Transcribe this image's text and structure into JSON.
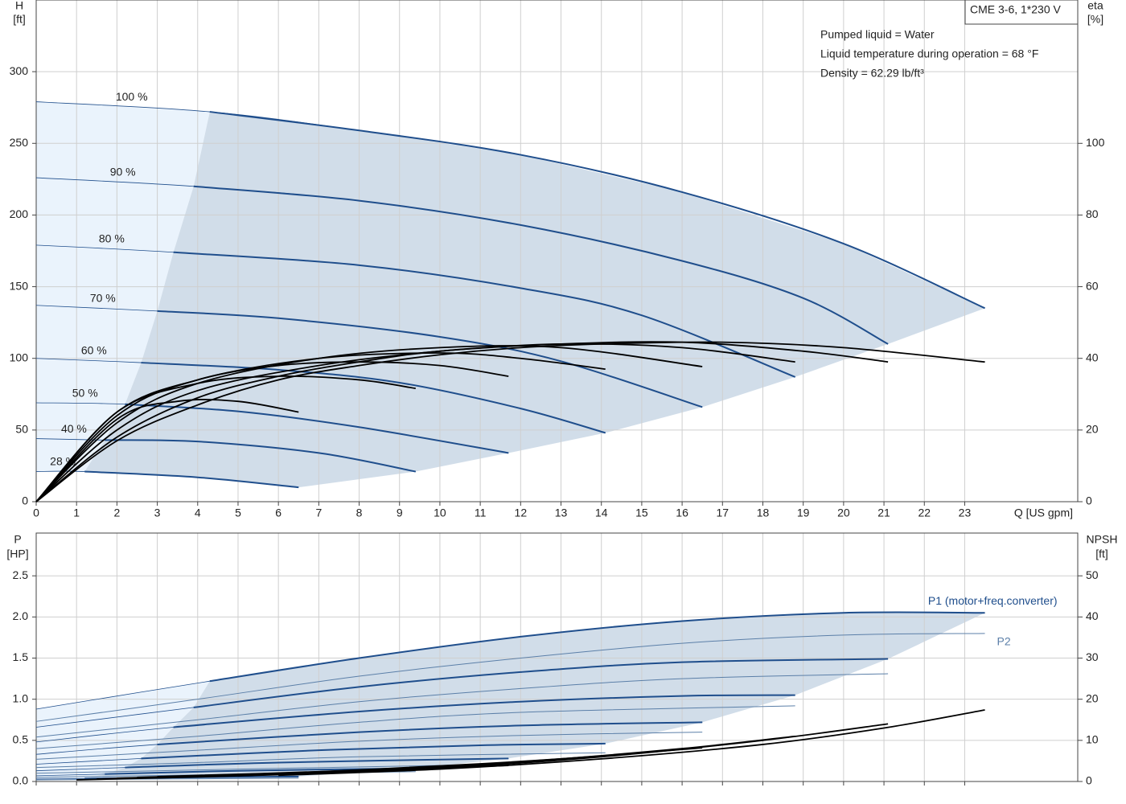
{
  "chart_data": [
    {
      "type": "line",
      "title": "CME 3-6, 1*230 V",
      "annotations": [
        "Pumped liquid = Water",
        "Liquid temperature during operation = 68 °F",
        "Density = 62.29 lb/ft³"
      ],
      "x_label": "Q [US gpm]",
      "y_label": "H",
      "y_unit": "[ft]",
      "y2_label": "eta",
      "y2_unit": "[%]",
      "xlim": [
        0,
        25.8
      ],
      "xticks": [
        0,
        1,
        2,
        3,
        4,
        5,
        6,
        7,
        8,
        9,
        10,
        11,
        12,
        13,
        14,
        15,
        16,
        17,
        18,
        19,
        20,
        21,
        22,
        23
      ],
      "ylim": [
        0,
        350
      ],
      "yticks": [
        0,
        50,
        100,
        150,
        200,
        250,
        300
      ],
      "y2lim": [
        0,
        140
      ],
      "y2ticks": [
        0,
        20,
        40,
        60,
        80,
        100
      ],
      "grid": true,
      "series": [
        {
          "name": "100 %",
          "color": "#1f4e8c",
          "line_style": "thick",
          "x": [
            0,
            4.3,
            8,
            12,
            16,
            20,
            23.5
          ],
          "values": [
            279,
            272,
            259,
            242,
            216,
            180,
            135
          ]
        },
        {
          "name": "90 %",
          "color": "#1f4e8c",
          "line_style": "thick",
          "x": [
            0,
            3.9,
            8,
            12,
            16,
            19,
            21.1
          ],
          "values": [
            226,
            220,
            210,
            193,
            168,
            142,
            110
          ]
        },
        {
          "name": "80 %",
          "color": "#1f4e8c",
          "line_style": "thick",
          "x": [
            0,
            3.4,
            8,
            12,
            15,
            18.8
          ],
          "values": [
            179,
            174,
            165,
            149,
            130,
            87
          ]
        },
        {
          "name": "70 %",
          "color": "#1f4e8c",
          "line_style": "thick",
          "x": [
            0,
            3,
            6,
            10,
            13,
            16.5
          ],
          "values": [
            137,
            133,
            128,
            115,
            98,
            66
          ]
        },
        {
          "name": "60 %",
          "color": "#1f4e8c",
          "line_style": "thick",
          "x": [
            0,
            2.6,
            6,
            9,
            12,
            14.1
          ],
          "values": [
            100,
            97,
            92,
            83,
            65,
            48
          ]
        },
        {
          "name": "50 %",
          "color": "#1f4e8c",
          "line_style": "thick",
          "x": [
            0,
            2.2,
            5,
            8,
            11.7
          ],
          "values": [
            69,
            68,
            63,
            52,
            34
          ]
        },
        {
          "name": "40 %",
          "color": "#1f4e8c",
          "line_style": "thick",
          "x": [
            0,
            1.7,
            4,
            7,
            9.4
          ],
          "values": [
            44,
            43,
            42,
            34,
            21
          ]
        },
        {
          "name": "28 %",
          "color": "#1f4e8c",
          "line_style": "thick",
          "x": [
            0,
            1.2,
            4,
            6.5
          ],
          "values": [
            21,
            21,
            17,
            10
          ]
        },
        {
          "axis": "y2",
          "color": "#000000",
          "line_style": "thick",
          "x": [
            0,
            2,
            4,
            6,
            8,
            10,
            12,
            14,
            17,
            20,
            23.5
          ],
          "values": [
            0,
            17,
            27,
            34,
            38,
            41,
            43,
            44,
            44.5,
            43,
            39
          ]
        },
        {
          "axis": "y2",
          "color": "#000000",
          "line_style": "thick",
          "x": [
            0,
            2,
            4,
            6,
            8,
            10,
            13,
            16,
            19,
            21.1
          ],
          "values": [
            0,
            18,
            29,
            35,
            39,
            42,
            44,
            44.5,
            42,
            39
          ]
        },
        {
          "axis": "y2",
          "color": "#000000",
          "line_style": "thick",
          "x": [
            0,
            2,
            4,
            7,
            10,
            13,
            16,
            18.8
          ],
          "values": [
            0,
            20,
            31,
            38,
            42,
            44,
            43,
            39
          ]
        },
        {
          "axis": "y2",
          "color": "#000000",
          "line_style": "thick",
          "x": [
            0,
            2,
            4,
            7,
            10,
            13,
            16.5
          ],
          "values": [
            0,
            22,
            33,
            40,
            43,
            43,
            37.7
          ]
        },
        {
          "axis": "y2",
          "color": "#000000",
          "line_style": "thick",
          "x": [
            0,
            2,
            4,
            7,
            10,
            12,
            14.1
          ],
          "values": [
            0,
            24,
            34,
            40,
            41.5,
            40,
            37
          ]
        },
        {
          "axis": "y2",
          "color": "#000000",
          "line_style": "thick",
          "x": [
            0,
            2,
            4,
            6,
            8,
            10,
            11.7
          ],
          "values": [
            0,
            25,
            34,
            38,
            39,
            38,
            35
          ]
        },
        {
          "axis": "y2",
          "color": "#000000",
          "line_style": "thick",
          "x": [
            0,
            2,
            4,
            6,
            8,
            9.4
          ],
          "values": [
            0,
            25,
            33,
            35,
            34,
            31.6
          ]
        },
        {
          "axis": "y2",
          "color": "#000000",
          "line_style": "thick",
          "x": [
            0,
            2,
            3.5,
            5,
            6.5
          ],
          "values": [
            0,
            23,
            28,
            28,
            25
          ]
        }
      ]
    },
    {
      "type": "line",
      "y_label": "P",
      "y_unit": "[HP]",
      "y2_label": "NPSH",
      "y2_unit": "[ft]",
      "xlim": [
        0,
        25.8
      ],
      "xticks": [
        0,
        1,
        2,
        3,
        4,
        5,
        6,
        7,
        8,
        9,
        10,
        11,
        12,
        13,
        14,
        15,
        16,
        17,
        18,
        19,
        20,
        21,
        22,
        23
      ],
      "ylim": [
        0,
        3.02
      ],
      "yticks": [
        {
          "value": 0,
          "label": "0.0"
        },
        0.5,
        {
          "value": 1,
          "label": "1.0"
        },
        1.5,
        {
          "value": 2,
          "label": "2.0"
        },
        2.5
      ],
      "y2lim": [
        0,
        60.4
      ],
      "y2ticks": [
        0,
        10,
        20,
        30,
        40,
        50
      ],
      "grid": true,
      "series": [
        {
          "name": "P1 (motor+freq.converter)",
          "color": "#1f4e8c",
          "line_style": "thick",
          "x": [
            0,
            4.3,
            8,
            12,
            16,
            20,
            23.5
          ],
          "values": [
            0.88,
            1.22,
            1.5,
            1.76,
            1.95,
            2.05,
            2.05
          ]
        },
        {
          "color": "#1f4e8c",
          "line_style": "thick",
          "x": [
            0,
            3.9,
            8,
            12,
            16,
            21.1
          ],
          "values": [
            0.66,
            0.9,
            1.15,
            1.33,
            1.45,
            1.49
          ]
        },
        {
          "color": "#1f4e8c",
          "line_style": "thick",
          "x": [
            0,
            3.4,
            8,
            12,
            16,
            18.8
          ],
          "values": [
            0.48,
            0.66,
            0.85,
            0.97,
            1.04,
            1.05
          ]
        },
        {
          "color": "#1f4e8c",
          "line_style": "thick",
          "x": [
            0,
            3,
            8,
            12,
            16.5
          ],
          "values": [
            0.33,
            0.45,
            0.6,
            0.68,
            0.72
          ]
        },
        {
          "color": "#1f4e8c",
          "line_style": "thick",
          "x": [
            0,
            2.6,
            7,
            11,
            14.1
          ],
          "values": [
            0.21,
            0.28,
            0.38,
            0.44,
            0.46
          ]
        },
        {
          "color": "#1f4e8c",
          "line_style": "thick",
          "x": [
            0,
            2.2,
            6,
            11.7
          ],
          "values": [
            0.13,
            0.17,
            0.23,
            0.28
          ]
        },
        {
          "color": "#1f4e8c",
          "line_style": "thick",
          "x": [
            0,
            1.7,
            5,
            9.4
          ],
          "values": [
            0.07,
            0.09,
            0.13,
            0.16
          ]
        },
        {
          "color": "#1f4e8c",
          "line_style": "thick",
          "x": [
            0,
            1.2,
            4,
            6.5
          ],
          "values": [
            0.03,
            0.035,
            0.05,
            0.06
          ]
        },
        {
          "name": "P2",
          "color": "#5b7fa8",
          "line_style": "thin",
          "x": [
            0,
            4,
            8,
            12,
            16,
            20,
            23.5
          ],
          "values": [
            0.73,
            1.0,
            1.28,
            1.5,
            1.68,
            1.78,
            1.8
          ]
        },
        {
          "color": "#5b7fa8",
          "line_style": "thin",
          "x": [
            0,
            4,
            8,
            12,
            16,
            21.1
          ],
          "values": [
            0.54,
            0.75,
            0.97,
            1.13,
            1.25,
            1.31
          ]
        },
        {
          "color": "#5b7fa8",
          "line_style": "thin",
          "x": [
            0,
            4,
            8,
            12,
            18.8
          ],
          "values": [
            0.4,
            0.55,
            0.72,
            0.84,
            0.92
          ]
        },
        {
          "color": "#5b7fa8",
          "line_style": "thin",
          "x": [
            0,
            4,
            8,
            12,
            16.5
          ],
          "values": [
            0.27,
            0.38,
            0.49,
            0.56,
            0.6
          ]
        },
        {
          "color": "#5b7fa8",
          "line_style": "thin",
          "x": [
            0,
            4,
            8,
            14.1
          ],
          "values": [
            0.17,
            0.23,
            0.3,
            0.35
          ]
        },
        {
          "color": "#5b7fa8",
          "line_style": "thin",
          "x": [
            0,
            5,
            11.7
          ],
          "values": [
            0.1,
            0.15,
            0.21
          ]
        },
        {
          "color": "#5b7fa8",
          "line_style": "thin",
          "x": [
            0,
            4,
            9.4
          ],
          "values": [
            0.05,
            0.08,
            0.12
          ]
        },
        {
          "color": "#5b7fa8",
          "line_style": "thin",
          "x": [
            0,
            3,
            6.5
          ],
          "values": [
            0.02,
            0.03,
            0.04
          ]
        },
        {
          "axis": "y2",
          "color": "#000000",
          "line_style": "thick",
          "x": [
            6,
            10,
            14,
            18,
            21,
            23.5
          ],
          "values": [
            1.5,
            3,
            5.5,
            9,
            13,
            17.4
          ]
        },
        {
          "axis": "y2",
          "color": "#000000",
          "line_style": "thick",
          "x": [
            5,
            10,
            14,
            18,
            21.1
          ],
          "values": [
            1.4,
            3.3,
            6,
            10,
            14
          ]
        },
        {
          "axis": "y2",
          "color": "#000000",
          "line_style": "thick",
          "x": [
            4,
            8,
            12,
            16,
            18.8
          ],
          "values": [
            1.3,
            2.6,
            4.8,
            8,
            11
          ]
        },
        {
          "axis": "y2",
          "color": "#000000",
          "line_style": "thick",
          "x": [
            3,
            7,
            11,
            14,
            16.5
          ],
          "values": [
            1.2,
            2.4,
            4.3,
            6.2,
            8.2
          ]
        },
        {
          "axis": "y2",
          "color": "#000000",
          "line_style": "thick",
          "x": [
            2.5,
            6,
            10,
            14.1
          ],
          "values": [
            1,
            2,
            3.6,
            6.2
          ]
        },
        {
          "axis": "y2",
          "color": "#000000",
          "line_style": "thick",
          "x": [
            2,
            6,
            11.7
          ],
          "values": [
            0.8,
            1.9,
            3.9
          ]
        },
        {
          "axis": "y2",
          "color": "#000000",
          "line_style": "thick",
          "x": [
            1.5,
            5,
            9.4
          ],
          "values": [
            0.6,
            1.5,
            2.8
          ]
        },
        {
          "axis": "y2",
          "color": "#000000",
          "line_style": "thick",
          "x": [
            1,
            4,
            6.5
          ],
          "values": [
            0.4,
            1.1,
            1.8
          ]
        }
      ]
    }
  ]
}
